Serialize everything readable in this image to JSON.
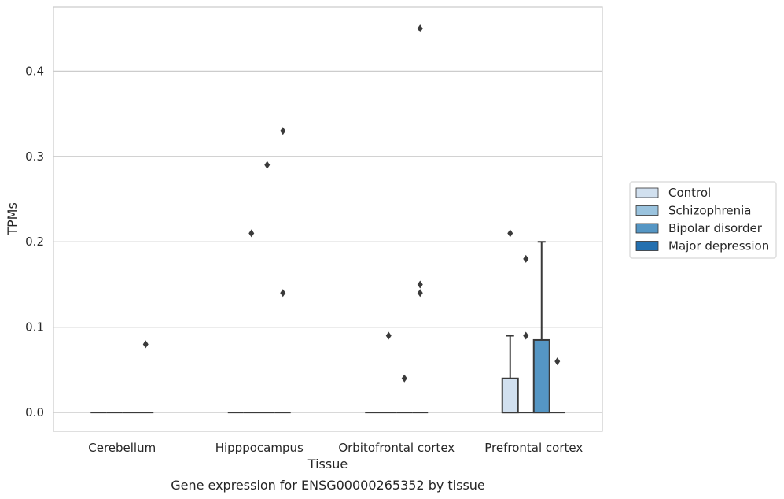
{
  "caption": "Gene expression for ENSG00000265352 by tissue",
  "chart_data": {
    "type": "box",
    "xlabel": "Tissue",
    "ylabel": "TPMs",
    "ylim": [
      -0.022,
      0.475
    ],
    "yticks": [
      0.0,
      0.1,
      0.2,
      0.3,
      0.4
    ],
    "ytick_labels": [
      "0.0",
      "0.1",
      "0.2",
      "0.3",
      "0.4"
    ],
    "grid": "horizontal",
    "legend_position": "right",
    "categories": [
      "Cerebellum",
      "Hipppocampus",
      "Orbitofrontal cortex",
      "Prefrontal cortex"
    ],
    "series": [
      {
        "name": "Control",
        "color": "#d1e0ef",
        "boxes": [
          {
            "q1": 0,
            "median": 0,
            "q3": 0,
            "whislo": 0,
            "whishi": 0,
            "fliers": []
          },
          {
            "q1": 0,
            "median": 0,
            "q3": 0,
            "whislo": 0,
            "whishi": 0,
            "fliers": []
          },
          {
            "q1": 0,
            "median": 0,
            "q3": 0,
            "whislo": 0,
            "whishi": 0,
            "fliers": []
          },
          {
            "q1": 0,
            "median": 0,
            "q3": 0.04,
            "whislo": 0,
            "whishi": 0.09,
            "fliers": [
              0.21
            ]
          }
        ]
      },
      {
        "name": "Schizophrenia",
        "color": "#9ac3de",
        "boxes": [
          {
            "q1": 0,
            "median": 0,
            "q3": 0,
            "whislo": 0,
            "whishi": 0,
            "fliers": []
          },
          {
            "q1": 0,
            "median": 0,
            "q3": 0,
            "whislo": 0,
            "whishi": 0,
            "fliers": [
              0.21
            ]
          },
          {
            "q1": 0,
            "median": 0,
            "q3": 0,
            "whislo": 0,
            "whishi": 0,
            "fliers": [
              0.09
            ]
          },
          {
            "q1": 0,
            "median": 0,
            "q3": 0,
            "whislo": 0,
            "whishi": 0,
            "fliers": [
              0.18,
              0.09
            ]
          }
        ]
      },
      {
        "name": "Bipolar disorder",
        "color": "#5596c4",
        "boxes": [
          {
            "q1": 0,
            "median": 0,
            "q3": 0,
            "whislo": 0,
            "whishi": 0,
            "fliers": []
          },
          {
            "q1": 0,
            "median": 0,
            "q3": 0,
            "whislo": 0,
            "whishi": 0,
            "fliers": [
              0.29
            ]
          },
          {
            "q1": 0,
            "median": 0,
            "q3": 0,
            "whislo": 0,
            "whishi": 0,
            "fliers": [
              0.04
            ]
          },
          {
            "q1": 0,
            "median": 0,
            "q3": 0.085,
            "whislo": 0,
            "whishi": 0.2,
            "fliers": []
          }
        ]
      },
      {
        "name": "Major depression",
        "color": "#2470b0",
        "boxes": [
          {
            "q1": 0,
            "median": 0,
            "q3": 0,
            "whislo": 0,
            "whishi": 0,
            "fliers": [
              0.08
            ]
          },
          {
            "q1": 0,
            "median": 0,
            "q3": 0,
            "whislo": 0,
            "whishi": 0,
            "fliers": [
              0.33,
              0.14
            ]
          },
          {
            "q1": 0,
            "median": 0,
            "q3": 0,
            "whislo": 0,
            "whishi": 0,
            "fliers": [
              0.45,
              0.15,
              0.14
            ]
          },
          {
            "q1": 0,
            "median": 0,
            "q3": 0,
            "whislo": 0,
            "whishi": 0,
            "fliers": [
              0.06
            ]
          }
        ]
      }
    ]
  }
}
